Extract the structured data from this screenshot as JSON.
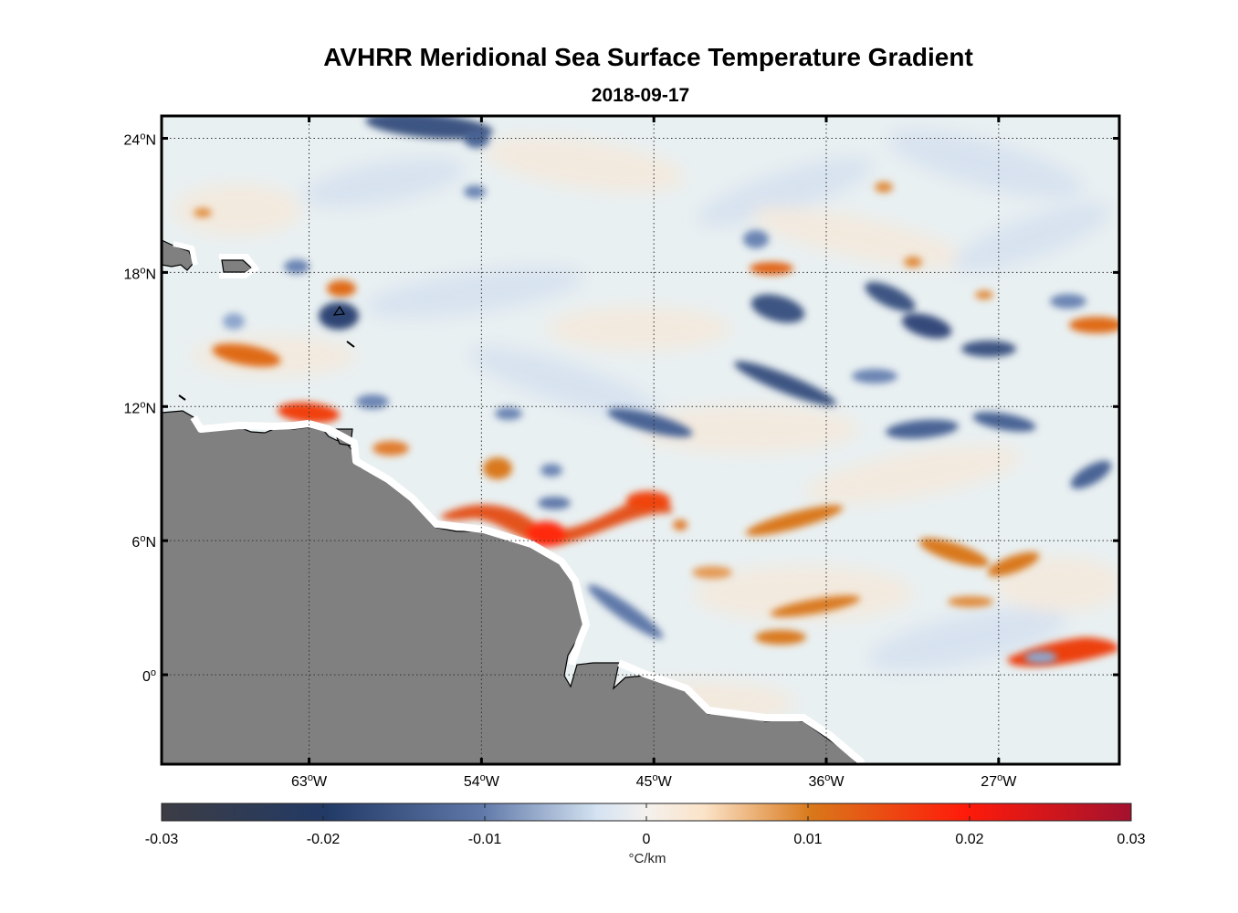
{
  "title": "AVHRR Meridional Sea Surface Temperature Gradient",
  "date": "2018-09-17",
  "map": {
    "lon_range": [
      -70.7,
      -20.7
    ],
    "lat_range": [
      -4,
      25
    ],
    "lat_ticks": [
      {
        "value": 24,
        "num": "24",
        "hemi": "N"
      },
      {
        "value": 18,
        "num": "18",
        "hemi": "N"
      },
      {
        "value": 12,
        "num": "12",
        "hemi": "N"
      },
      {
        "value": 6,
        "num": "6",
        "hemi": "N"
      },
      {
        "value": 0,
        "num": "0",
        "hemi": ""
      }
    ],
    "lon_ticks": [
      {
        "value": -63,
        "num": "63",
        "hemi": "W"
      },
      {
        "value": -54,
        "num": "54",
        "hemi": "W"
      },
      {
        "value": -45,
        "num": "45",
        "hemi": "W"
      },
      {
        "value": -36,
        "num": "36",
        "hemi": "W"
      },
      {
        "value": -27,
        "num": "27",
        "hemi": "W"
      }
    ],
    "land_color": "#808080",
    "ocean_color": "#e9f0f2"
  },
  "chart_data": {
    "type": "heatmap",
    "title": "AVHRR Meridional Sea Surface Temperature Gradient",
    "subtitle": "2018-09-17",
    "variable": "meridional SST gradient",
    "units": "°C/km",
    "colorbar": {
      "min": -0.03,
      "max": 0.03,
      "ticks": [
        -0.03,
        -0.02,
        -0.01,
        0,
        0.01,
        0.02,
        0.03
      ],
      "tick_labels": [
        "-0.03",
        "-0.02",
        "-0.01",
        "0",
        "0.01",
        "0.02",
        "0.03"
      ],
      "colors": [
        "#3c3c44",
        "#223a66",
        "#5f78a8",
        "#d5e3f2",
        "#f4f1ee",
        "#fbe3c8",
        "#d9781a",
        "#ff1a0a",
        "#a3122e"
      ]
    },
    "features": [
      {
        "kind": "positive",
        "lon": -54.3,
        "lat": 7.2,
        "value": 0.016
      },
      {
        "kind": "positive",
        "lon": -52.3,
        "lat": 5.8,
        "value": 0.021
      },
      {
        "kind": "positive",
        "lon": -47.5,
        "lat": 7.1,
        "value": 0.019
      },
      {
        "kind": "positive",
        "lon": -62.8,
        "lat": 11.7,
        "value": 0.02
      },
      {
        "kind": "positive",
        "lon": -66.1,
        "lat": 14.2,
        "value": 0.015
      },
      {
        "kind": "positive",
        "lon": -61.5,
        "lat": 17.4,
        "value": 0.014
      },
      {
        "kind": "positive",
        "lon": -39.7,
        "lat": 17.9,
        "value": 0.014
      },
      {
        "kind": "positive",
        "lon": -22.5,
        "lat": 0.7,
        "value": 0.022
      },
      {
        "kind": "positive",
        "lon": -25.8,
        "lat": 0.3,
        "value": 0.016
      },
      {
        "kind": "positive",
        "lon": -28.5,
        "lat": 3.5,
        "value": 0.012
      },
      {
        "kind": "positive",
        "lon": -38.6,
        "lat": 6.2,
        "value": 0.012
      },
      {
        "kind": "positive",
        "lon": -38.2,
        "lat": 2.3,
        "value": 0.011
      },
      {
        "kind": "negative",
        "lon": -61.5,
        "lat": 15.9,
        "value": -0.018
      },
      {
        "kind": "negative",
        "lon": -38.5,
        "lat": 16.1,
        "value": -0.017
      },
      {
        "kind": "negative",
        "lon": -32.8,
        "lat": 15.4,
        "value": -0.018
      },
      {
        "kind": "negative",
        "lon": -38.3,
        "lat": 12.9,
        "value": -0.015
      },
      {
        "kind": "negative",
        "lon": -44.8,
        "lat": 10.4,
        "value": -0.014
      },
      {
        "kind": "negative",
        "lon": -56.3,
        "lat": 24.4,
        "value": -0.014
      },
      {
        "kind": "negative",
        "lon": -29.5,
        "lat": 14.1,
        "value": -0.013
      },
      {
        "kind": "negative",
        "lon": -33.0,
        "lat": 10.6,
        "value": -0.012
      }
    ]
  }
}
